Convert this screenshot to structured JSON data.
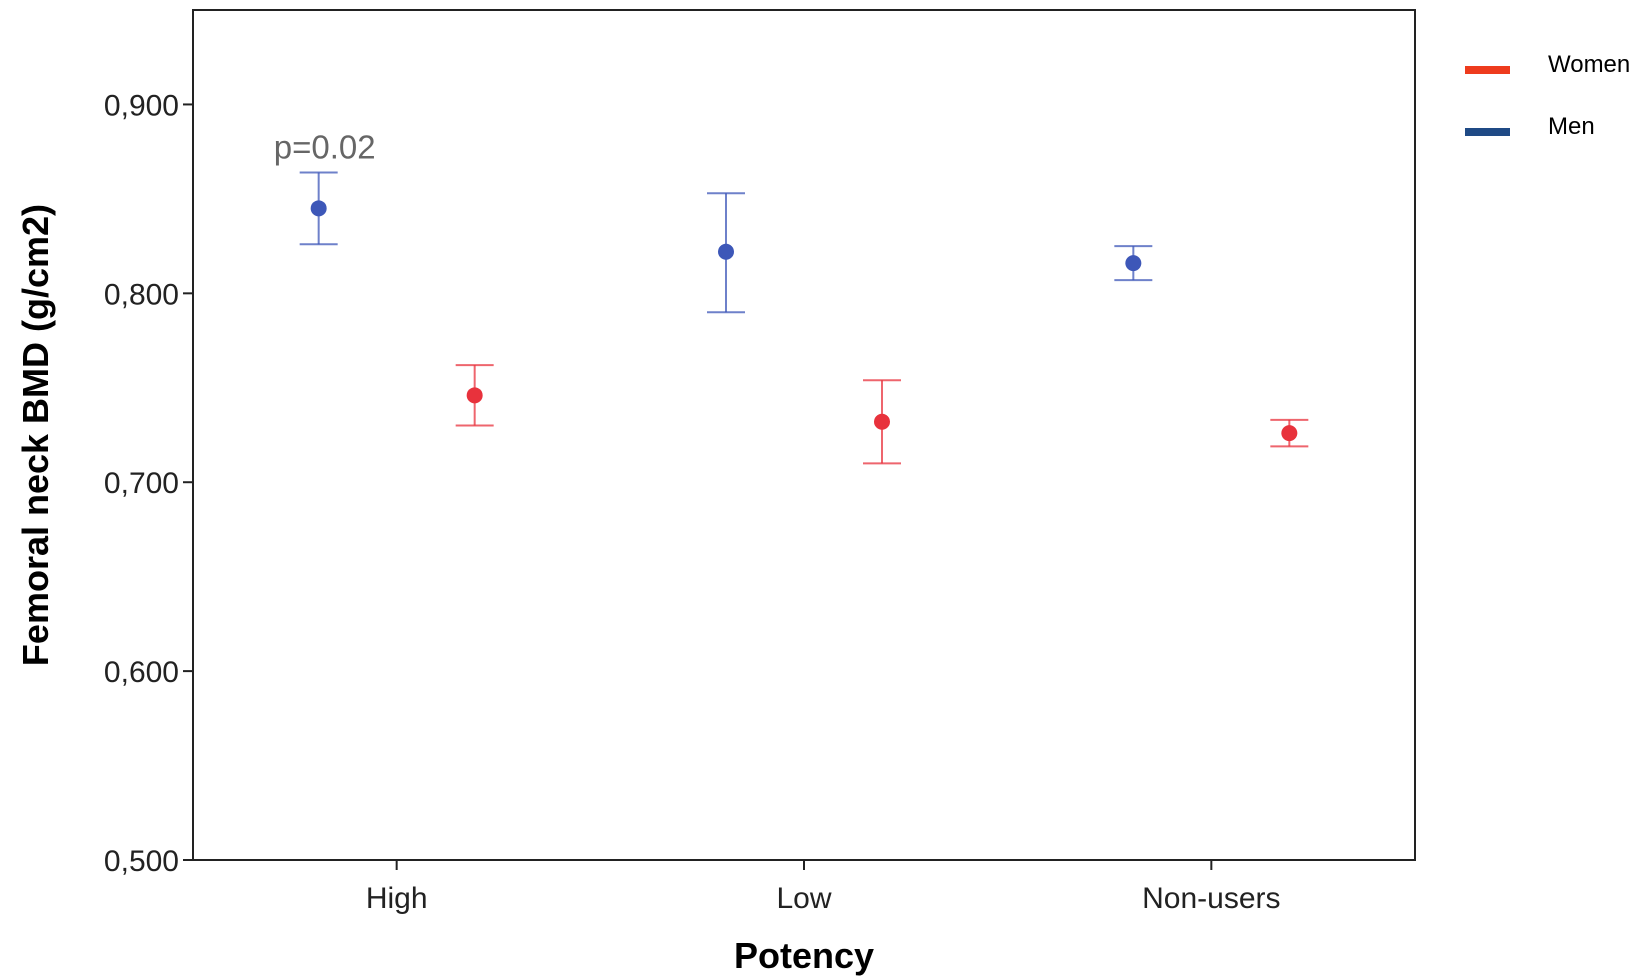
{
  "chart_data": {
    "type": "scatter",
    "subtype": "error-bar",
    "title": "",
    "xlabel": "Potency",
    "ylabel": "Femoral neck BMD (g/cm2)",
    "categories": [
      "High",
      "Low",
      "Non-users"
    ],
    "ylim": [
      0.5,
      0.95
    ],
    "yticks": [
      0.5,
      0.6,
      0.7,
      0.8,
      0.9
    ],
    "ytick_labels": [
      "0,500",
      "0,600",
      "0,700",
      "0,800",
      "0,900"
    ],
    "grid": false,
    "legend_position": "top-right, outside plot",
    "series": [
      {
        "name": "Women",
        "color": "#e8323c",
        "legend_color": "#ee3b1d",
        "values": [
          0.746,
          0.732,
          0.726
        ],
        "lower": [
          0.73,
          0.71,
          0.719
        ],
        "upper": [
          0.762,
          0.754,
          0.733
        ]
      },
      {
        "name": "Men",
        "color": "#3d57b8",
        "legend_color": "#1f4a85",
        "values": [
          0.845,
          0.822,
          0.816
        ],
        "lower": [
          0.826,
          0.79,
          0.807
        ],
        "upper": [
          0.864,
          0.853,
          0.825
        ]
      }
    ],
    "annotations": [
      {
        "text": "p=0.02",
        "category": "High",
        "series": "Men"
      }
    ]
  }
}
